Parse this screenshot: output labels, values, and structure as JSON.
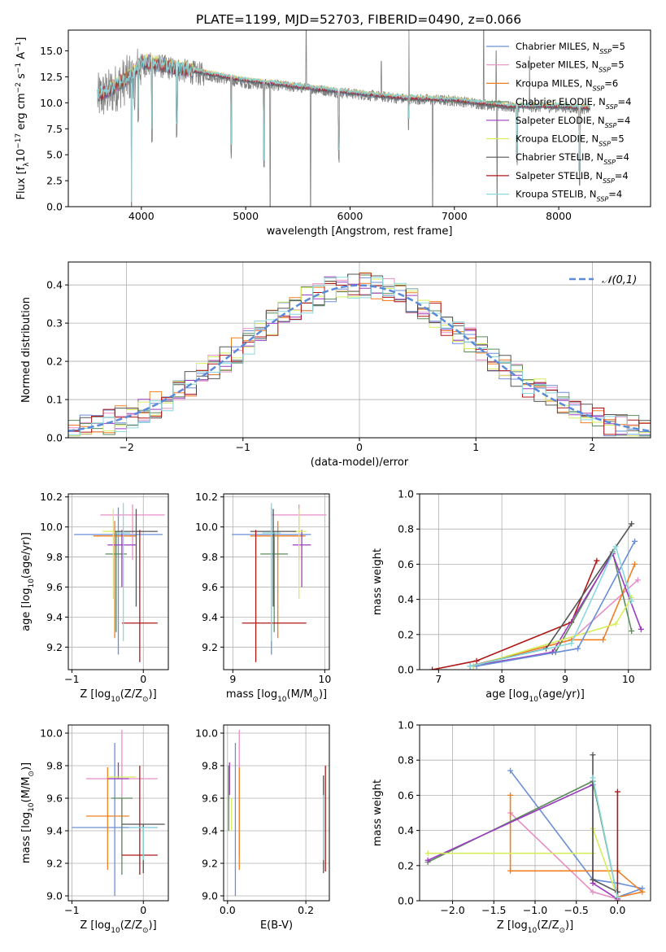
{
  "title": "PLATE=1199, MJD=52703, FIBERID=0490, z=0.066",
  "series": [
    {
      "name": "Chabrier MILES",
      "nssp": "5",
      "color": "#6a8fd8"
    },
    {
      "name": "Salpeter MILES",
      "nssp": "5",
      "color": "#e68ec6"
    },
    {
      "name": "Kroupa MILES",
      "nssp": "6",
      "color": "#f07f22"
    },
    {
      "name": "Chabrier ELODIE",
      "nssp": "4",
      "color": "#5b8b5b"
    },
    {
      "name": "Salpeter ELODIE",
      "nssp": "4",
      "color": "#9b3bc0"
    },
    {
      "name": "Kroupa ELODIE",
      "nssp": "5",
      "color": "#d6ee5c"
    },
    {
      "name": "Chabrier STELIB",
      "nssp": "4",
      "color": "#555555"
    },
    {
      "name": "Salpeter STELIB",
      "nssp": "4",
      "color": "#b01818"
    },
    {
      "name": "Kroupa STELIB",
      "nssp": "4",
      "color": "#8ad8de"
    }
  ],
  "chart_data": [
    {
      "id": "spectrum",
      "type": "line",
      "xlabel": "wavelength [Angstrom, rest frame]",
      "ylabel": "Flux [fλ10⁻¹⁷ erg cm⁻² s⁻¹ A⁻¹]",
      "xlim": [
        3300,
        8880
      ],
      "ylim": [
        0,
        17
      ],
      "xticks": [
        4000,
        5000,
        6000,
        7000,
        8000
      ],
      "yticks": [
        0.0,
        2.5,
        5.0,
        7.5,
        10.0,
        12.5,
        15.0
      ],
      "data_color": "#808080",
      "data_anchors": [
        [
          3580,
          10.5
        ],
        [
          3700,
          11.0
        ],
        [
          3800,
          11.8
        ],
        [
          3900,
          12.5
        ],
        [
          4000,
          13.6
        ],
        [
          4100,
          13.7
        ],
        [
          4300,
          13.3
        ],
        [
          4500,
          12.9
        ],
        [
          5000,
          11.9
        ],
        [
          5500,
          11.5
        ],
        [
          6000,
          10.9
        ],
        [
          6500,
          10.4
        ],
        [
          7000,
          10.2
        ],
        [
          7500,
          9.6
        ],
        [
          8000,
          9.6
        ],
        [
          8300,
          9.4
        ]
      ],
      "model_anchors": [
        [
          3580,
          10.7
        ],
        [
          3700,
          11.3
        ],
        [
          3800,
          12.0
        ],
        [
          3900,
          12.6
        ],
        [
          4000,
          13.9
        ],
        [
          4050,
          14.0
        ],
        [
          4300,
          13.4
        ],
        [
          4500,
          13.1
        ],
        [
          5000,
          12.2
        ],
        [
          5500,
          11.6
        ],
        [
          6000,
          11.0
        ],
        [
          6500,
          10.5
        ],
        [
          7000,
          10.3
        ],
        [
          7500,
          9.7
        ],
        [
          8000,
          9.7
        ],
        [
          8300,
          9.5
        ]
      ],
      "absorption_lines": [
        [
          3934,
          9.0
        ],
        [
          3969,
          8.0
        ],
        [
          4102,
          6.0
        ],
        [
          4340,
          6.5
        ],
        [
          4861,
          4.5
        ],
        [
          5175,
          3.0
        ],
        [
          5892,
          4.0
        ],
        [
          6563,
          7.0
        ],
        [
          7600,
          3.5
        ],
        [
          8200,
          2.0
        ]
      ],
      "deep_dips": [
        [
          3905,
          0.0
        ],
        [
          5235,
          0.0
        ],
        [
          5622,
          0.0
        ],
        [
          6792,
          0.0
        ],
        [
          7410,
          0.0
        ]
      ],
      "spikes": [
        [
          5580,
          17.0
        ],
        [
          6300,
          14.0
        ],
        [
          6565,
          17.0
        ],
        [
          7280,
          17.0
        ],
        [
          7400,
          15.0
        ],
        [
          7720,
          14.5
        ]
      ]
    },
    {
      "id": "residuals",
      "type": "histogram",
      "xlabel": "(data-model)/error",
      "ylabel": "Normed distribution",
      "xlim": [
        -2.5,
        2.5
      ],
      "ylim": [
        0,
        0.46
      ],
      "xticks": [
        -2,
        -1,
        0,
        1,
        2
      ],
      "yticks": [
        0.0,
        0.1,
        0.2,
        0.3,
        0.4
      ],
      "legend_label": "𝒩(0,1)",
      "legend_color": "#5a8ad8",
      "bin_width": 0.1,
      "bin_start": -2.5
    },
    {
      "id": "Z-age",
      "type": "scatter",
      "xlabel": "Z [log10(Z/Z☉)]",
      "ylabel": "age  [log10(age/yr)]",
      "xlim": [
        -1.05,
        0.35
      ],
      "ylim": [
        9.05,
        10.22
      ],
      "xticks": [
        -1,
        0
      ],
      "yticks": [
        9.2,
        9.4,
        9.6,
        9.8,
        10.0,
        10.2
      ],
      "points": [
        {
          "s": 0,
          "x": -0.35,
          "y": 9.95,
          "xerr": 0.62,
          "yerr": [
            0.8,
            0.18
          ]
        },
        {
          "s": 1,
          "x": -0.15,
          "y": 10.08,
          "xerr": 0.45,
          "yerr": [
            0.3,
            0.07
          ]
        },
        {
          "s": 2,
          "x": -0.4,
          "y": 9.94,
          "xerr": 0.3,
          "yerr": [
            0.68,
            0.1
          ]
        },
        {
          "s": 3,
          "x": -0.38,
          "y": 9.82,
          "xerr": 0.15,
          "yerr": [
            0.52,
            0.15
          ]
        },
        {
          "s": 4,
          "x": -0.3,
          "y": 9.88,
          "xerr": 0.2,
          "yerr": [
            0.28,
            0.1
          ]
        },
        {
          "s": 5,
          "x": -0.42,
          "y": 9.97,
          "xerr": 0.15,
          "yerr": [
            0.45,
            0.15
          ]
        },
        {
          "s": 6,
          "x": -0.1,
          "y": 9.97,
          "xerr": 0.3,
          "yerr": [
            0.5,
            0.15
          ]
        },
        {
          "s": 7,
          "x": -0.05,
          "y": 9.36,
          "xerr": 0.25,
          "yerr": [
            0.26,
            0.62
          ]
        },
        {
          "s": 8,
          "x": -0.28,
          "y": 9.96,
          "xerr": 0.1,
          "yerr": [
            0.72,
            0.2
          ]
        }
      ]
    },
    {
      "id": "mass-age",
      "type": "scatter",
      "xlabel": "mass [log10(M/M☉)]",
      "ylabel": "",
      "xlim": [
        8.9,
        10.05
      ],
      "ylim": [
        9.05,
        10.22
      ],
      "xticks": [
        9,
        10
      ],
      "yticks": [
        9.2,
        9.4,
        9.6,
        9.8,
        10.0,
        10.2
      ],
      "points": [
        {
          "s": 0,
          "x": 9.42,
          "y": 9.95,
          "xerr": 0.43,
          "yerr": [
            0.8,
            0.18
          ]
        },
        {
          "s": 1,
          "x": 9.72,
          "y": 10.08,
          "xerr": 0.3,
          "yerr": [
            0.3,
            0.07
          ]
        },
        {
          "s": 2,
          "x": 9.49,
          "y": 9.94,
          "xerr": 0.3,
          "yerr": [
            0.68,
            0.1
          ]
        },
        {
          "s": 3,
          "x": 9.45,
          "y": 9.82,
          "xerr": 0.15,
          "yerr": [
            0.52,
            0.15
          ]
        },
        {
          "s": 4,
          "x": 9.75,
          "y": 9.88,
          "xerr": 0.1,
          "yerr": [
            0.28,
            0.1
          ]
        },
        {
          "s": 5,
          "x": 9.72,
          "y": 9.97,
          "xerr": 0.08,
          "yerr": [
            0.45,
            0.15
          ]
        },
        {
          "s": 6,
          "x": 9.44,
          "y": 9.97,
          "xerr": 0.25,
          "yerr": [
            0.5,
            0.15
          ]
        },
        {
          "s": 7,
          "x": 9.25,
          "y": 9.36,
          "xerr": [
            0.15,
            0.55
          ],
          "yerr": [
            0.26,
            0.62
          ]
        },
        {
          "s": 8,
          "x": 9.42,
          "y": 9.96,
          "xerr": 0.1,
          "yerr": [
            0.72,
            0.2
          ]
        }
      ]
    },
    {
      "id": "age-weight",
      "type": "line",
      "xlabel": "age  [log10(age/yr)]",
      "ylabel": "mass weight",
      "xlim": [
        6.7,
        10.35
      ],
      "ylim": [
        0,
        1.0
      ],
      "xticks": [
        7,
        8,
        9,
        10
      ],
      "yticks": [
        0.0,
        0.2,
        0.4,
        0.6,
        0.8,
        1.0
      ],
      "paths": [
        {
          "s": 7,
          "pts": [
            [
              6.9,
              0.0
            ],
            [
              7.6,
              0.05
            ],
            [
              9.1,
              0.27
            ],
            [
              9.5,
              0.62
            ]
          ]
        },
        {
          "s": 1,
          "pts": [
            [
              7.5,
              0.02
            ],
            [
              9.1,
              0.17
            ],
            [
              10.15,
              0.51
            ]
          ]
        },
        {
          "s": 2,
          "pts": [
            [
              7.5,
              0.02
            ],
            [
              9.1,
              0.17
            ],
            [
              9.6,
              0.17
            ],
            [
              10.1,
              0.6
            ]
          ]
        },
        {
          "s": 3,
          "pts": [
            [
              7.5,
              0.02
            ],
            [
              8.85,
              0.1
            ],
            [
              9.75,
              0.67
            ],
            [
              10.05,
              0.22
            ]
          ]
        },
        {
          "s": 4,
          "pts": [
            [
              7.55,
              0.02
            ],
            [
              8.8,
              0.1
            ],
            [
              9.75,
              0.66
            ],
            [
              10.2,
              0.23
            ]
          ]
        },
        {
          "s": 5,
          "pts": [
            [
              7.55,
              0.02
            ],
            [
              9.8,
              0.26
            ],
            [
              10.05,
              0.41
            ]
          ]
        },
        {
          "s": 6,
          "pts": [
            [
              7.5,
              0.02
            ],
            [
              8.7,
              0.12
            ],
            [
              10.05,
              0.83
            ]
          ]
        },
        {
          "s": 0,
          "pts": [
            [
              7.6,
              0.02
            ],
            [
              9.2,
              0.12
            ],
            [
              10.1,
              0.73
            ]
          ]
        },
        {
          "s": 8,
          "pts": [
            [
              7.5,
              0.02
            ],
            [
              9.1,
              0.15
            ],
            [
              9.8,
              0.7
            ],
            [
              10.05,
              0.39
            ]
          ]
        }
      ]
    },
    {
      "id": "Z-mass",
      "type": "scatter",
      "xlabel": "Z [log10(Z/Z☉)]",
      "ylabel": "mass [log10(M/M☉)]",
      "xlim": [
        -1.05,
        0.35
      ],
      "ylim": [
        8.97,
        10.05
      ],
      "xticks": [
        -1,
        0
      ],
      "yticks": [
        9.0,
        9.2,
        9.4,
        9.6,
        9.8,
        10.0
      ],
      "points": [
        {
          "s": 0,
          "x": -0.4,
          "y": 9.42,
          "xerr": 0.6,
          "yerr": [
            0.42,
            0.52
          ]
        },
        {
          "s": 1,
          "x": -0.3,
          "y": 9.72,
          "xerr": 0.5,
          "yerr": [
            0.47,
            0.3
          ]
        },
        {
          "s": 2,
          "x": -0.5,
          "y": 9.49,
          "xerr": 0.3,
          "yerr": [
            0.33,
            0.3
          ]
        },
        {
          "s": 3,
          "x": -0.3,
          "y": 9.6,
          "xerr": 0.15,
          "yerr": [
            0.47,
            0.0
          ]
        },
        {
          "s": 4,
          "x": -0.35,
          "y": 9.72,
          "xerr": 0.15,
          "yerr": [
            0.0,
            0.1
          ]
        },
        {
          "s": 5,
          "x": -0.3,
          "y": 9.73,
          "xerr": 0.2,
          "yerr": [
            0.0,
            0.0
          ]
        },
        {
          "s": 6,
          "x": 0.0,
          "y": 9.44,
          "xerr": 0.3,
          "yerr": [
            0.3,
            0.0
          ]
        },
        {
          "s": 7,
          "x": -0.05,
          "y": 9.25,
          "xerr": 0.25,
          "yerr": [
            0.12,
            0.55
          ]
        },
        {
          "s": 8,
          "x": 0.0,
          "y": 9.42,
          "xerr": 0.2,
          "yerr": [
            0.2,
            0.0
          ]
        }
      ]
    },
    {
      "id": "ebv-mass",
      "type": "scatter",
      "xlabel": "E(B-V)",
      "ylabel": "",
      "xlim": [
        -0.01,
        0.26
      ],
      "ylim": [
        8.97,
        10.05
      ],
      "xticks": [
        0.0,
        0.2
      ],
      "yticks": [
        9.0,
        9.2,
        9.4,
        9.6,
        9.8,
        10.0
      ],
      "points": [
        {
          "s": 0,
          "x": 0.02,
          "y": 9.42,
          "xerr": 0.0,
          "yerr": [
            0.42,
            0.52
          ]
        },
        {
          "s": 1,
          "x": 0.03,
          "y": 9.72,
          "xerr": 0.0,
          "yerr": [
            0.47,
            0.3
          ]
        },
        {
          "s": 2,
          "x": 0.03,
          "y": 9.49,
          "xerr": 0.0,
          "yerr": [
            0.33,
            0.3
          ]
        },
        {
          "s": 3,
          "x": 0.003,
          "y": 9.6,
          "xerr": 0.0,
          "yerr": [
            0.2,
            0.2
          ]
        },
        {
          "s": 4,
          "x": 0.005,
          "y": 9.72,
          "xerr": 0.0,
          "yerr": [
            0.1,
            0.1
          ]
        },
        {
          "s": 5,
          "x": 0.01,
          "y": 9.5,
          "xerr": 0.0,
          "yerr": [
            0.1,
            0.1
          ]
        },
        {
          "s": 6,
          "x": 0.245,
          "y": 9.44,
          "xerr": 0.0,
          "yerr": [
            0.3,
            0.3
          ]
        },
        {
          "s": 7,
          "x": 0.25,
          "y": 9.5,
          "xerr": 0.0,
          "yerr": [
            0.35,
            0.3
          ]
        },
        {
          "s": 8,
          "x": 0.245,
          "y": 9.42,
          "xerr": 0.0,
          "yerr": [
            0.2,
            0.2
          ]
        }
      ]
    },
    {
      "id": "Z-weight",
      "type": "line",
      "xlabel": "Z [log10(Z/Z☉)]",
      "ylabel": "mass weight",
      "xlim": [
        -2.4,
        0.4
      ],
      "ylim": [
        0,
        1.0
      ],
      "xticks": [
        -2.0,
        -1.5,
        -1.0,
        -0.5,
        0.0
      ],
      "yticks": [
        0.0,
        0.2,
        0.4,
        0.6,
        0.8,
        1.0
      ],
      "paths": [
        {
          "s": 0,
          "pts": [
            [
              -1.3,
              0.74
            ],
            [
              -0.3,
              0.12
            ],
            [
              0.0,
              0.1
            ],
            [
              0.3,
              0.07
            ],
            [
              0.0,
              0.02
            ]
          ]
        },
        {
          "s": 1,
          "pts": [
            [
              -1.3,
              0.5
            ],
            [
              -0.3,
              0.05
            ],
            [
              0.0,
              0.01
            ],
            [
              0.0,
              0.02
            ]
          ]
        },
        {
          "s": 2,
          "pts": [
            [
              -1.3,
              0.6
            ],
            [
              -1.3,
              0.17
            ],
            [
              0.0,
              0.17
            ],
            [
              0.3,
              0.05
            ],
            [
              0.0,
              0.02
            ]
          ]
        },
        {
          "s": 3,
          "pts": [
            [
              -2.3,
              0.22
            ],
            [
              -0.3,
              0.68
            ],
            [
              0.0,
              0.02
            ]
          ]
        },
        {
          "s": 4,
          "pts": [
            [
              -2.3,
              0.23
            ],
            [
              -0.3,
              0.66
            ],
            [
              -0.3,
              0.1
            ],
            [
              0.0,
              0.01
            ]
          ]
        },
        {
          "s": 5,
          "pts": [
            [
              -2.3,
              0.27
            ],
            [
              -0.3,
              0.27
            ],
            [
              -0.3,
              0.41
            ],
            [
              0.0,
              0.02
            ]
          ]
        },
        {
          "s": 6,
          "pts": [
            [
              -0.3,
              0.83
            ],
            [
              -0.3,
              0.12
            ],
            [
              0.0,
              0.05
            ]
          ]
        },
        {
          "s": 7,
          "pts": [
            [
              0.0,
              0.62
            ],
            [
              0.0,
              0.0
            ]
          ]
        },
        {
          "s": 8,
          "pts": [
            [
              -0.3,
              0.7
            ],
            [
              0.0,
              0.02
            ]
          ]
        }
      ]
    }
  ]
}
